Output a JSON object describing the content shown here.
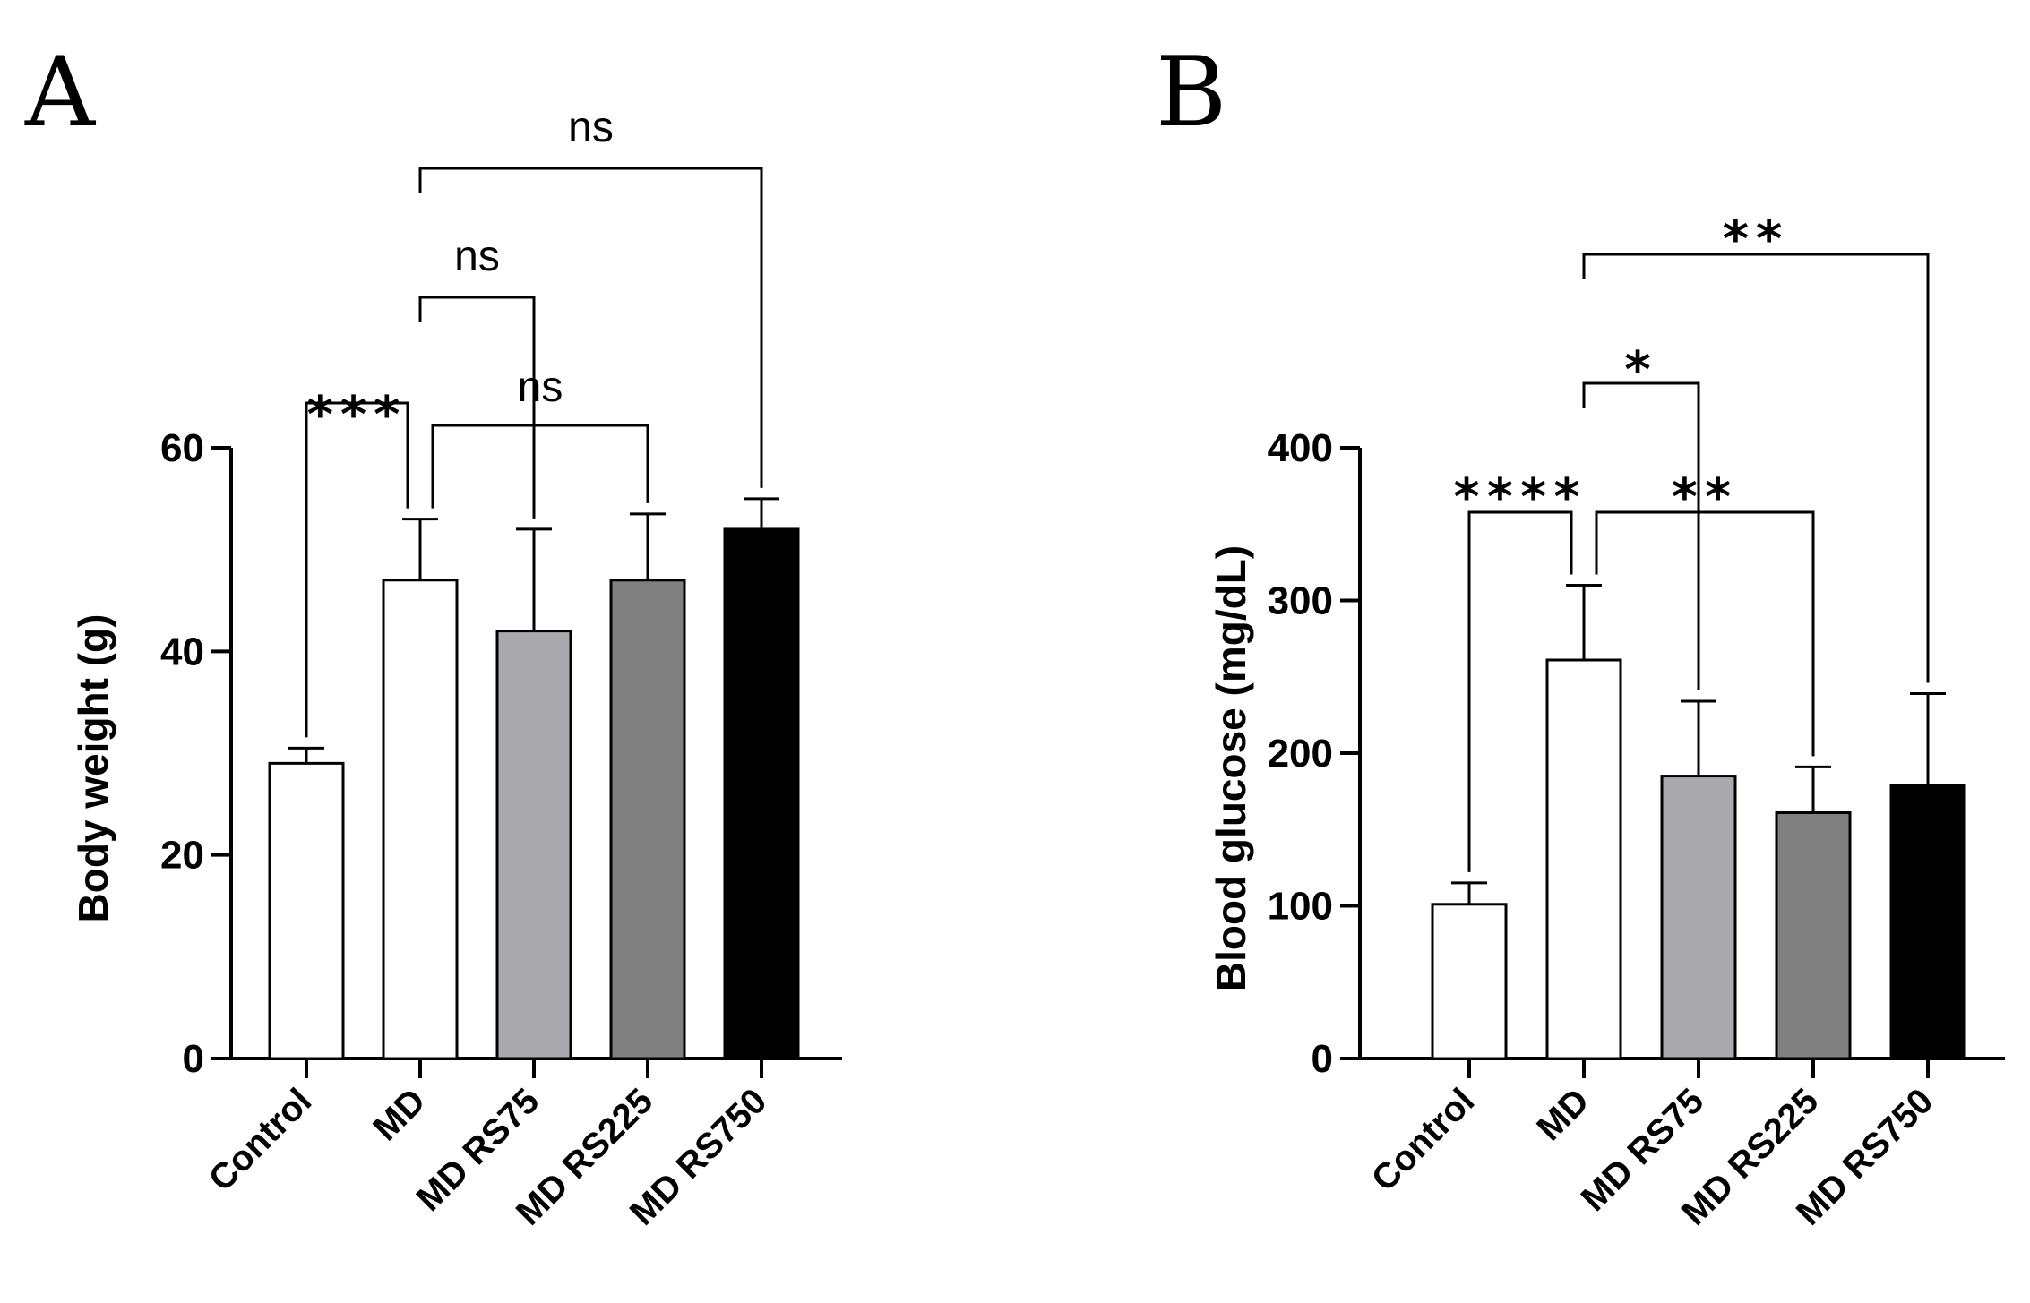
{
  "chart_data": [
    {
      "panel": "A",
      "type": "bar",
      "ylabel": "Body weight (g)",
      "xlabel": "",
      "ylim": [
        0,
        60
      ],
      "yticks": [
        0,
        20,
        40,
        60
      ],
      "categories": [
        "Control",
        "MD",
        "MD RS75",
        "MD RS225",
        "MD RS750"
      ],
      "values": [
        29,
        47,
        42,
        47,
        52
      ],
      "errors": [
        1.5,
        6,
        10,
        6.5,
        3
      ],
      "bar_colors": [
        "#ffffff",
        "#ffffff",
        "#a9a9ae",
        "#808080",
        "#000000"
      ],
      "significance": [
        {
          "from": 0,
          "to": 1,
          "label": "***"
        },
        {
          "from": 1,
          "to": 3,
          "label": "ns"
        },
        {
          "from": 1,
          "to": 2,
          "label": "ns"
        },
        {
          "from": 1,
          "to": 4,
          "label": "ns"
        }
      ]
    },
    {
      "panel": "B",
      "type": "bar",
      "ylabel": "Blood glucose (mg/dL)",
      "xlabel": "",
      "ylim": [
        0,
        400
      ],
      "yticks": [
        0,
        100,
        200,
        300,
        400
      ],
      "categories": [
        "Control",
        "MD",
        "MD RS75",
        "MD RS225",
        "MD RS750"
      ],
      "values": [
        101,
        261,
        185,
        161,
        179
      ],
      "errors": [
        14,
        49,
        49,
        30,
        60
      ],
      "bar_colors": [
        "#ffffff",
        "#ffffff",
        "#a9a9ae",
        "#808080",
        "#000000"
      ],
      "significance": [
        {
          "from": 0,
          "to": 1,
          "label": "****"
        },
        {
          "from": 1,
          "to": 3,
          "label": "**"
        },
        {
          "from": 1,
          "to": 2,
          "label": "*"
        },
        {
          "from": 1,
          "to": 4,
          "label": "**"
        }
      ]
    }
  ]
}
